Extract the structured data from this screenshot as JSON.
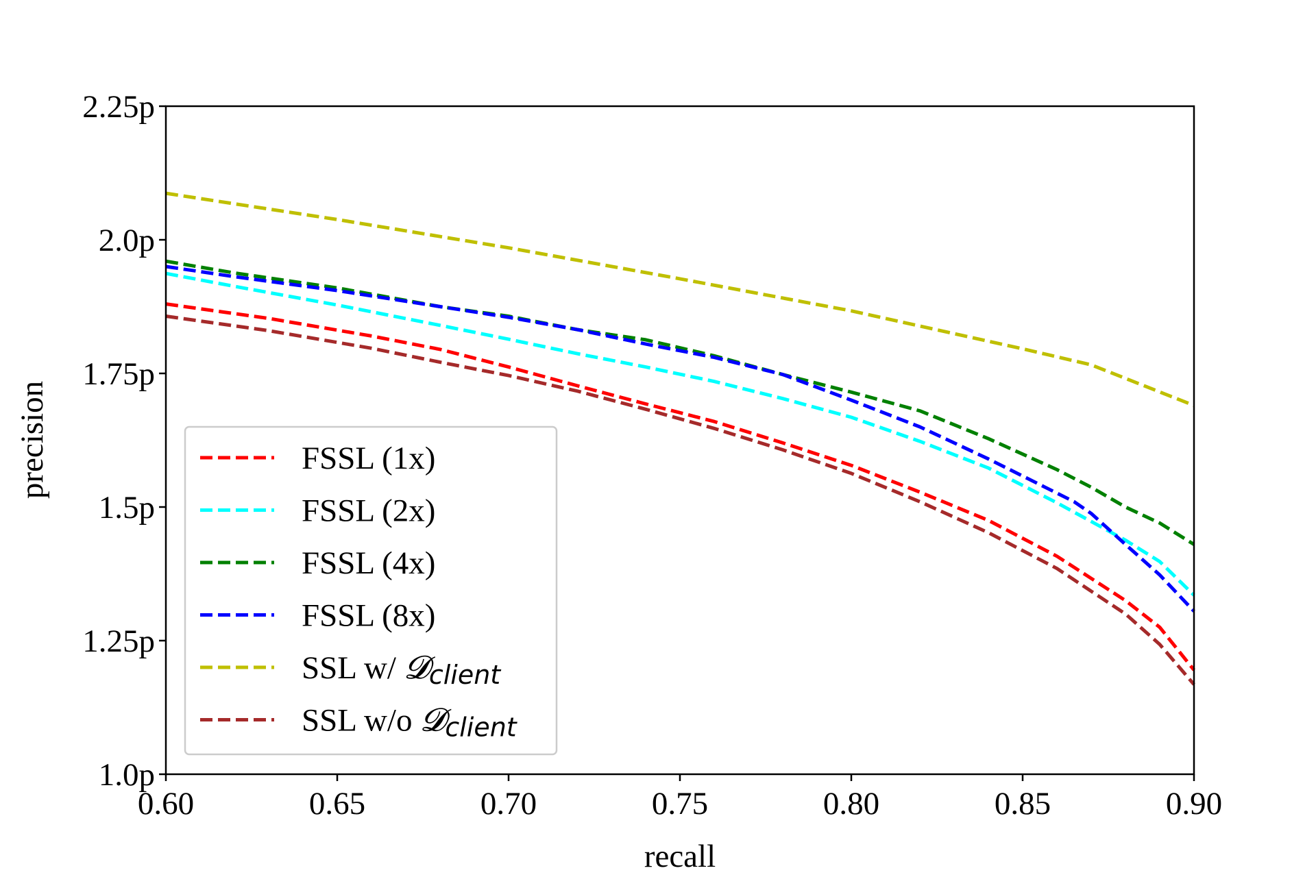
{
  "chart_data": {
    "type": "line",
    "title": "",
    "xlabel": "recall",
    "ylabel": "precision",
    "xlim": [
      0.6,
      0.9
    ],
    "ylim": [
      1.0,
      2.25
    ],
    "xticks": [
      0.6,
      0.65,
      0.7,
      0.75,
      0.8,
      0.85,
      0.9
    ],
    "xtick_labels": [
      "0.60",
      "0.65",
      "0.70",
      "0.75",
      "0.80",
      "0.85",
      "0.90"
    ],
    "yticks": [
      1.0,
      1.25,
      1.5,
      1.75,
      2.0,
      2.25
    ],
    "ytick_labels": [
      "1.0p",
      "1.25p",
      "1.5p",
      "1.75p",
      "2.0p",
      "2.25p"
    ],
    "grid": false,
    "legend_position": "lower-left",
    "series": [
      {
        "name": "FSSL (1x)",
        "label": "FSSL (1x)",
        "color": "#ff0000",
        "x": [
          0.6,
          0.63,
          0.66,
          0.68,
          0.7,
          0.72,
          0.74,
          0.76,
          0.78,
          0.8,
          0.82,
          0.84,
          0.86,
          0.88,
          0.89,
          0.9
        ],
        "y": [
          1.88,
          1.853,
          1.82,
          1.795,
          1.762,
          1.727,
          1.693,
          1.66,
          1.62,
          1.578,
          1.528,
          1.475,
          1.408,
          1.325,
          1.275,
          1.195
        ]
      },
      {
        "name": "FSSL (2x)",
        "label": "FSSL (2x)",
        "color": "#00ffff",
        "x": [
          0.6,
          0.62,
          0.65,
          0.68,
          0.7,
          0.72,
          0.74,
          0.76,
          0.78,
          0.8,
          0.82,
          0.84,
          0.86,
          0.87,
          0.88,
          0.89,
          0.9
        ],
        "y": [
          1.937,
          1.913,
          1.878,
          1.84,
          1.814,
          1.787,
          1.762,
          1.735,
          1.703,
          1.668,
          1.623,
          1.573,
          1.508,
          1.473,
          1.438,
          1.398,
          1.335
        ]
      },
      {
        "name": "FSSL (4x)",
        "label": "FSSL (4x)",
        "color": "#008000",
        "x": [
          0.6,
          0.62,
          0.65,
          0.68,
          0.7,
          0.72,
          0.74,
          0.76,
          0.78,
          0.8,
          0.82,
          0.84,
          0.86,
          0.87,
          0.88,
          0.89,
          0.9
        ],
        "y": [
          1.96,
          1.938,
          1.91,
          1.875,
          1.857,
          1.832,
          1.813,
          1.783,
          1.748,
          1.715,
          1.68,
          1.628,
          1.57,
          1.537,
          1.5,
          1.47,
          1.43
        ]
      },
      {
        "name": "FSSL (8x)",
        "label": "FSSL (8x)",
        "color": "#0000ff",
        "x": [
          0.6,
          0.62,
          0.65,
          0.68,
          0.7,
          0.72,
          0.74,
          0.76,
          0.78,
          0.8,
          0.82,
          0.84,
          0.865,
          0.87,
          0.88,
          0.89,
          0.9
        ],
        "y": [
          1.95,
          1.931,
          1.905,
          1.875,
          1.855,
          1.832,
          1.805,
          1.78,
          1.748,
          1.7,
          1.65,
          1.59,
          1.51,
          1.488,
          1.43,
          1.373,
          1.305
        ]
      },
      {
        "name": "SSL w/ D_client",
        "label": "SSL w/ ",
        "color": "#bfbf00",
        "x": [
          0.6,
          0.65,
          0.7,
          0.75,
          0.8,
          0.85,
          0.87,
          0.9
        ],
        "y": [
          2.087,
          2.038,
          1.985,
          1.927,
          1.867,
          1.796,
          1.766,
          1.69
        ]
      },
      {
        "name": "SSL w/o D_client",
        "label": "SSL w/o ",
        "color": "#a52a2a",
        "x": [
          0.6,
          0.63,
          0.66,
          0.68,
          0.7,
          0.72,
          0.74,
          0.76,
          0.78,
          0.8,
          0.82,
          0.84,
          0.86,
          0.88,
          0.89,
          0.9
        ],
        "y": [
          1.857,
          1.83,
          1.797,
          1.771,
          1.746,
          1.717,
          1.683,
          1.647,
          1.607,
          1.563,
          1.51,
          1.452,
          1.385,
          1.3,
          1.243,
          1.168
        ]
      }
    ],
    "legend_math": {
      "script_letter": "𝓓",
      "subscript": "client"
    }
  }
}
